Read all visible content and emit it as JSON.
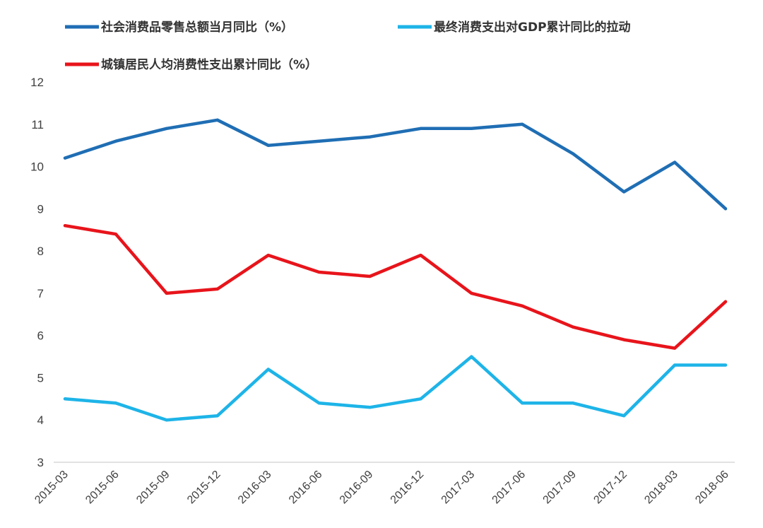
{
  "chart_data": {
    "type": "line",
    "title": "",
    "xlabel": "",
    "ylabel": "",
    "ylim": [
      3,
      12
    ],
    "yticks": [
      3,
      4,
      5,
      6,
      7,
      8,
      9,
      10,
      11,
      12
    ],
    "grid": false,
    "legend_position": "top",
    "categories": [
      "2015-03",
      "2015-06",
      "2015-09",
      "2015-12",
      "2016-03",
      "2016-06",
      "2016-09",
      "2016-12",
      "2017-03",
      "2017-06",
      "2017-09",
      "2017-12",
      "2018-03",
      "2018-06"
    ],
    "series": [
      {
        "name": "社会消费品零售总额当月同比（%）",
        "color": "#1f6eb4",
        "values": [
          10.2,
          10.6,
          10.9,
          11.1,
          10.5,
          10.6,
          10.7,
          10.9,
          10.9,
          11.0,
          10.3,
          9.4,
          10.1,
          9.0
        ]
      },
      {
        "name": "最终消费支出对GDP累计同比的拉动",
        "color": "#1eb4e8",
        "values": [
          4.5,
          4.4,
          4.0,
          4.1,
          5.2,
          4.4,
          4.3,
          4.5,
          5.5,
          4.4,
          4.4,
          4.1,
          5.3,
          5.3
        ]
      },
      {
        "name": "城镇居民人均消费性支出累计同比（%）",
        "color": "#e8141b",
        "values": [
          8.6,
          8.4,
          7.0,
          7.1,
          7.9,
          7.5,
          7.4,
          7.9,
          7.0,
          6.7,
          6.2,
          5.9,
          5.7,
          6.8
        ]
      }
    ]
  }
}
